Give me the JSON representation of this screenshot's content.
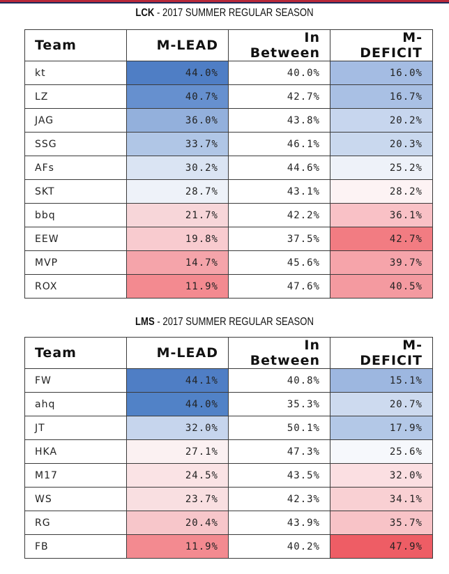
{
  "tables": [
    {
      "title_bold": "LCK",
      "title_rest": " - 2017 SUMMER REGULAR SEASON",
      "headers": [
        "Team",
        "M-LEAD",
        "In Between",
        "M-DEFICIT"
      ],
      "rows": [
        {
          "team": "kt",
          "lead": "44.0%",
          "between": "40.0%",
          "deficit": "16.0%",
          "lead_color": "#4f7ec5",
          "deficit_color": "#a4bce3"
        },
        {
          "team": "LZ",
          "lead": "40.7%",
          "between": "42.7%",
          "deficit": "16.7%",
          "lead_color": "#6690cf",
          "deficit_color": "#a9c0e4"
        },
        {
          "team": "JAG",
          "lead": "36.0%",
          "between": "43.8%",
          "deficit": "20.2%",
          "lead_color": "#93b0dc",
          "deficit_color": "#c7d6ee"
        },
        {
          "team": "SSG",
          "lead": "33.7%",
          "between": "46.1%",
          "deficit": "20.3%",
          "lead_color": "#b0c6e6",
          "deficit_color": "#c9d8ee"
        },
        {
          "team": "AFs",
          "lead": "30.2%",
          "between": "44.6%",
          "deficit": "25.2%",
          "lead_color": "#dae4f3",
          "deficit_color": "#eef2f9"
        },
        {
          "team": "SKT",
          "lead": "28.7%",
          "between": "43.1%",
          "deficit": "28.2%",
          "lead_color": "#eef2f9",
          "deficit_color": "#fdf3f4"
        },
        {
          "team": "bbq",
          "lead": "21.7%",
          "between": "42.2%",
          "deficit": "36.1%",
          "lead_color": "#f7d6d9",
          "deficit_color": "#f9c1c6"
        },
        {
          "team": "EEW",
          "lead": "19.8%",
          "between": "37.5%",
          "deficit": "42.7%",
          "lead_color": "#f8cbcf",
          "deficit_color": "#f27c82"
        },
        {
          "team": "MVP",
          "lead": "14.7%",
          "between": "45.6%",
          "deficit": "39.7%",
          "lead_color": "#f5a4aa",
          "deficit_color": "#f6a4aa"
        },
        {
          "team": "ROX",
          "lead": "11.9%",
          "between": "47.6%",
          "deficit": "40.5%",
          "lead_color": "#f38a90",
          "deficit_color": "#f49aa0"
        }
      ]
    },
    {
      "title_bold": "LMS",
      "title_rest": " - 2017 SUMMER REGULAR SEASON",
      "headers": [
        "Team",
        "M-LEAD",
        "In Between",
        "M-DEFICIT"
      ],
      "rows": [
        {
          "team": "FW",
          "lead": "44.1%",
          "between": "40.8%",
          "deficit": "15.1%",
          "lead_color": "#4f7ec5",
          "deficit_color": "#9db7e0"
        },
        {
          "team": "ahq",
          "lead": "44.0%",
          "between": "35.3%",
          "deficit": "20.7%",
          "lead_color": "#5182c7",
          "deficit_color": "#cddaef"
        },
        {
          "team": "JT",
          "lead": "32.0%",
          "between": "50.1%",
          "deficit": "17.9%",
          "lead_color": "#c6d5ed",
          "deficit_color": "#b3c8e7"
        },
        {
          "team": "HKA",
          "lead": "27.1%",
          "between": "47.3%",
          "deficit": "25.6%",
          "lead_color": "#fbf1f2",
          "deficit_color": "#f6f8fc"
        },
        {
          "team": "M17",
          "lead": "24.5%",
          "between": "43.5%",
          "deficit": "32.0%",
          "lead_color": "#fae3e5",
          "deficit_color": "#fbdfe2"
        },
        {
          "team": "WS",
          "lead": "23.7%",
          "between": "42.3%",
          "deficit": "34.1%",
          "lead_color": "#f9dfe1",
          "deficit_color": "#f9d0d3"
        },
        {
          "team": "RG",
          "lead": "20.4%",
          "between": "43.9%",
          "deficit": "35.7%",
          "lead_color": "#f7c6ca",
          "deficit_color": "#f8c3c7"
        },
        {
          "team": "FB",
          "lead": "11.9%",
          "between": "40.2%",
          "deficit": "47.9%",
          "lead_color": "#f38a90",
          "deficit_color": "#ee5d65"
        }
      ]
    }
  ]
}
